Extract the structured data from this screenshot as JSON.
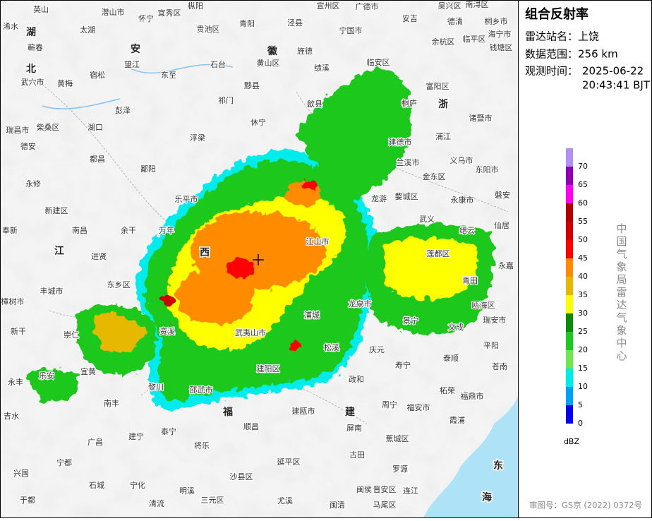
{
  "panel": {
    "title": "组合反射率",
    "station": "雷达站名：上饶",
    "range": "数据范围：256 km",
    "time_label": "观测时间：",
    "date": "2025-06-22",
    "time": "20:43:41 BJT",
    "agency": "中国气象局雷达气象中心",
    "footer": "审图号：GS京 (2022) 0372号"
  },
  "legend": {
    "unit": "dBZ",
    "levels": [
      {
        "label": 0,
        "color": "#0000f6"
      },
      {
        "label": 5,
        "color": "#01a0f6"
      },
      {
        "label": 10,
        "color": "#00ecec"
      },
      {
        "label": 15,
        "color": "#6ee84a"
      },
      {
        "label": 20,
        "color": "#1ec81e"
      },
      {
        "label": 25,
        "color": "#0a8c0a"
      },
      {
        "label": 30,
        "color": "#ffff00"
      },
      {
        "label": 35,
        "color": "#e6b800"
      },
      {
        "label": 40,
        "color": "#ff8c00"
      },
      {
        "label": 45,
        "color": "#ff0000"
      },
      {
        "label": 50,
        "color": "#d00000"
      },
      {
        "label": 55,
        "color": "#b00000"
      },
      {
        "label": 60,
        "color": "#ff00f0"
      },
      {
        "label": 65,
        "color": "#9000b0"
      },
      {
        "label": 70,
        "color": "#b090f0"
      }
    ]
  },
  "map": {
    "regions": [
      "湖",
      "北",
      "安",
      "徽",
      "浙",
      "江",
      "西",
      "福",
      "建",
      "东",
      "海"
    ],
    "places": [
      "英山",
      "潜山市",
      "怀宁",
      "宜秀区",
      "枞阳",
      "宣州区",
      "广德市",
      "吴兴区",
      "南浔区",
      "浠水",
      "太湖",
      "贵池区",
      "青阳",
      "泾县",
      "宁国市",
      "安吉",
      "德清",
      "桐乡市",
      "蕲春",
      "望江",
      "石台",
      "黄山区",
      "旌德",
      "余杭区",
      "临平区",
      "海宁市",
      "钱塘区",
      "武穴市",
      "黄梅",
      "宿松",
      "东至",
      "黟县",
      "绩溪",
      "临安区",
      "富阳区",
      "祁门",
      "桐庐",
      "彭泽",
      "休宁",
      "歙县",
      "诸暨市",
      "瑞昌市",
      "柴桑区",
      "湖口",
      "浮梁",
      "建德市",
      "浦江",
      "德安",
      "都昌",
      "鄱阳",
      "兰溪市",
      "义乌市",
      "东阳市",
      "永修",
      "金东区",
      "婺城区",
      "永康市",
      "磐安",
      "乐平市",
      "龙游",
      "新建区",
      "武义",
      "仙居",
      "南昌",
      "余干",
      "万年",
      "奉新",
      "缙云",
      "进贤",
      "江山市",
      "莲都区",
      "永嘉",
      "丰城市",
      "东乡区",
      "青田",
      "樟树市",
      "龙泉市",
      "瓯海区",
      "新干",
      "崇仁",
      "资溪",
      "浦城",
      "景宁",
      "瑞安市",
      "文成",
      "武夷山市",
      "平阳",
      "松溪",
      "庆元",
      "泰顺",
      "苍南",
      "宜黄",
      "建阳区",
      "政和",
      "寿宁",
      "永丰",
      "乐安",
      "黎川",
      "邵武市",
      "柘荣",
      "福鼎市",
      "南丰",
      "周宁",
      "福安市",
      "吉水",
      "泰宁",
      "顺昌",
      "建瓯市",
      "屏南",
      "霞浦",
      "广昌",
      "建宁",
      "将乐",
      "蕉城区",
      "古田",
      "宁都",
      "延平区",
      "罗源",
      "兴国",
      "石城",
      "宁化",
      "明溪",
      "沙县区",
      "闽侯",
      "连江",
      "晋安区",
      "于都",
      "清流",
      "三元区",
      "尤溪",
      "闽清",
      "马尾区"
    ]
  }
}
